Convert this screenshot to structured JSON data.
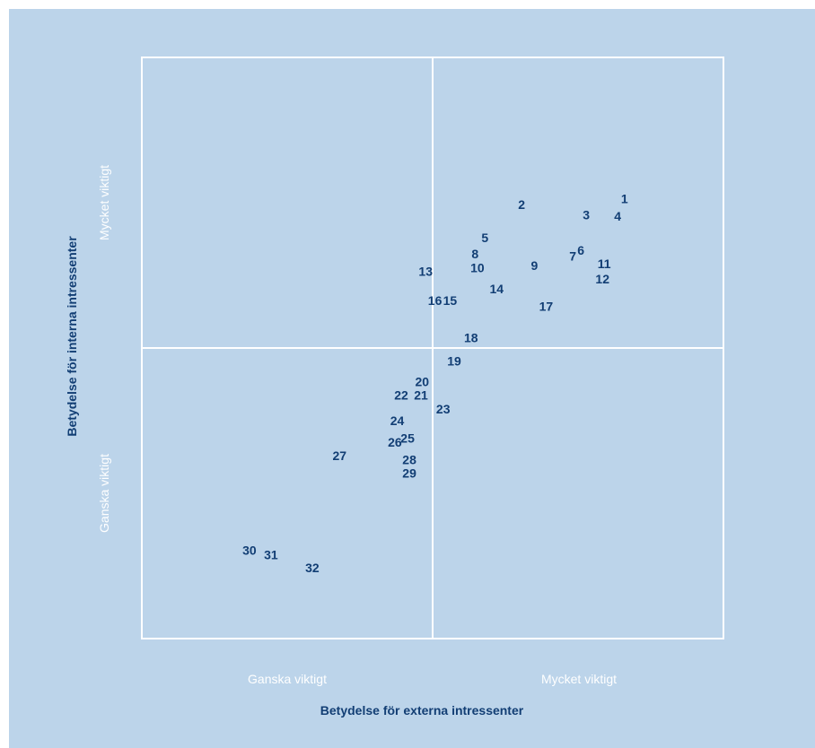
{
  "colors": {
    "background": "#bcd4ea",
    "page": "#ffffff",
    "gridline": "#ffffff",
    "point_label": "#123e74",
    "axis_title": "#123e74",
    "axis_category": "#ffffff"
  },
  "chart_data": {
    "type": "scatter",
    "xlabel": "Betydelse för externa intressenter",
    "ylabel": "Betydelse för interna intressenter",
    "x_categories": [
      "Ganska viktigt",
      "Mycket viktigt"
    ],
    "y_categories": [
      "Ganska viktigt",
      "Mycket viktigt"
    ],
    "xlim": [
      0,
      1
    ],
    "ylim": [
      0,
      1
    ],
    "grid": true,
    "points": [
      {
        "label": "1",
        "x": 0.83,
        "y": 0.755
      },
      {
        "label": "2",
        "x": 0.653,
        "y": 0.745
      },
      {
        "label": "3",
        "x": 0.764,
        "y": 0.727
      },
      {
        "label": "4",
        "x": 0.818,
        "y": 0.725
      },
      {
        "label": "5",
        "x": 0.59,
        "y": 0.688
      },
      {
        "label": "6",
        "x": 0.755,
        "y": 0.666
      },
      {
        "label": "7",
        "x": 0.741,
        "y": 0.656
      },
      {
        "label": "8",
        "x": 0.573,
        "y": 0.66
      },
      {
        "label": "9",
        "x": 0.675,
        "y": 0.64
      },
      {
        "label": "10",
        "x": 0.577,
        "y": 0.636
      },
      {
        "label": "11",
        "x": 0.795,
        "y": 0.643
      },
      {
        "label": "12",
        "x": 0.792,
        "y": 0.617
      },
      {
        "label": "13",
        "x": 0.488,
        "y": 0.63
      },
      {
        "label": "14",
        "x": 0.61,
        "y": 0.6
      },
      {
        "label": "15",
        "x": 0.53,
        "y": 0.58
      },
      {
        "label": "16",
        "x": 0.504,
        "y": 0.58
      },
      {
        "label": "17",
        "x": 0.695,
        "y": 0.57
      },
      {
        "label": "18",
        "x": 0.566,
        "y": 0.516
      },
      {
        "label": "19",
        "x": 0.537,
        "y": 0.476
      },
      {
        "label": "20",
        "x": 0.482,
        "y": 0.44
      },
      {
        "label": "21",
        "x": 0.48,
        "y": 0.417
      },
      {
        "label": "22",
        "x": 0.446,
        "y": 0.417
      },
      {
        "label": "23",
        "x": 0.518,
        "y": 0.393
      },
      {
        "label": "24",
        "x": 0.439,
        "y": 0.373
      },
      {
        "label": "25",
        "x": 0.457,
        "y": 0.343
      },
      {
        "label": "26",
        "x": 0.435,
        "y": 0.336
      },
      {
        "label": "27",
        "x": 0.34,
        "y": 0.313
      },
      {
        "label": "28",
        "x": 0.46,
        "y": 0.306
      },
      {
        "label": "29",
        "x": 0.46,
        "y": 0.283
      },
      {
        "label": "30",
        "x": 0.185,
        "y": 0.15
      },
      {
        "label": "31",
        "x": 0.222,
        "y": 0.142
      },
      {
        "label": "32",
        "x": 0.293,
        "y": 0.12
      }
    ]
  }
}
